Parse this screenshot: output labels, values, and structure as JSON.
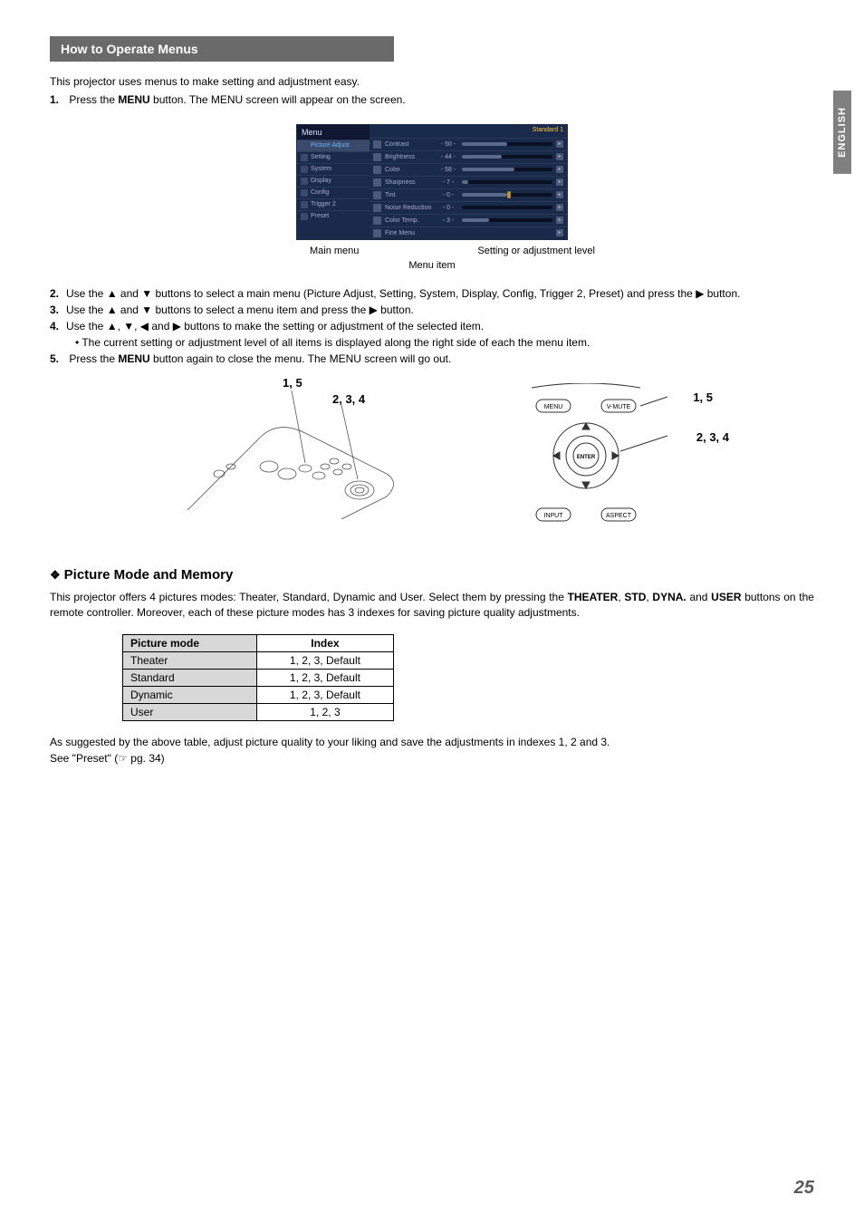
{
  "sideTab": "ENGLISH",
  "sectionHeader": "How to Operate Menus",
  "intro": "This projector uses menus to make setting and adjustment easy.",
  "step1": {
    "num": "1.",
    "pre": "Press the ",
    "bold": "MENU",
    "post": " button. The MENU screen will appear on the screen."
  },
  "menuShot": {
    "header": "Menu",
    "badge": "Standard 1",
    "leftItems": [
      "Picture Adjust",
      "Setting",
      "System",
      "Display",
      "Config",
      "Trigger 2",
      "Preset"
    ],
    "rightItems": [
      {
        "label": "Contrast",
        "val": "- 50 -",
        "fill": 50
      },
      {
        "label": "Brightness",
        "val": "- 44 -",
        "fill": 44
      },
      {
        "label": "Color",
        "val": "- 58 -",
        "fill": 58
      },
      {
        "label": "Sharpness",
        "val": "-  7 -",
        "fill": 7
      },
      {
        "label": "Tint",
        "val": "-  0 -",
        "fill": 50,
        "marker": true
      },
      {
        "label": "Noise Reduction",
        "val": "-  0 -",
        "fill": 0
      },
      {
        "label": "Color Temp.",
        "val": "-  3 -",
        "fill": 30
      },
      {
        "label": "Fine Menu",
        "val": "",
        "nobar": true
      }
    ],
    "annotMain": "Main menu",
    "annotItem": "Menu item",
    "annotSet": "Setting or adjustment level"
  },
  "step2": {
    "num": "2.",
    "text": "Use the ▲ and ▼ buttons to select a main menu (Picture Adjust, Setting, System, Display, Config, Trigger 2, Preset) and press the ▶ button."
  },
  "step3": {
    "num": "3.",
    "text": "Use the ▲ and ▼ buttons to select a menu item and press the ▶ button."
  },
  "step4": {
    "num": "4.",
    "text": "Use the ▲, ▼, ◀ and ▶ buttons to make the setting or adjustment of the selected item."
  },
  "step4sub": "• The current setting or adjustment level of all items is displayed along the right side of each the menu item.",
  "step5": {
    "num": "5.",
    "pre": "Press the ",
    "bold": "MENU",
    "post": " button again to close the menu. The MENU screen will go out."
  },
  "callouts": {
    "a": "1, 5",
    "b": "2, 3, 4"
  },
  "controlButtons": {
    "menu": "MENU",
    "vmute": "V-MUTE",
    "enter": "ENTER",
    "input": "INPUT",
    "aspect": "ASPECT"
  },
  "sub": {
    "title": "Picture Mode and Memory",
    "body1_pre": "This projector offers 4 pictures modes: Theater, Standard, Dynamic and User. Select them by pressing the ",
    "b1": "THEATER",
    "c1": ", ",
    "b2": "STD",
    "c2": ", ",
    "b3": "DYNA.",
    "c3": " and ",
    "b4": "USER",
    "body1_post": " buttons on the remote controller. Moreover, each of these picture modes has 3 indexes for saving picture quality adjustments."
  },
  "table": {
    "headers": [
      "Picture mode",
      "Index"
    ],
    "rows": [
      [
        "Theater",
        "1, 2, 3, Default"
      ],
      [
        "Standard",
        "1, 2, 3, Default"
      ],
      [
        "Dynamic",
        "1, 2, 3, Default"
      ],
      [
        "User",
        "1, 2, 3"
      ]
    ]
  },
  "footer1": "As suggested by the above table, adjust picture quality to your liking and save the adjustments in indexes 1, 2 and 3.",
  "footer2": "See \"Preset\" (☞ pg. 34)",
  "pageNum": "25"
}
